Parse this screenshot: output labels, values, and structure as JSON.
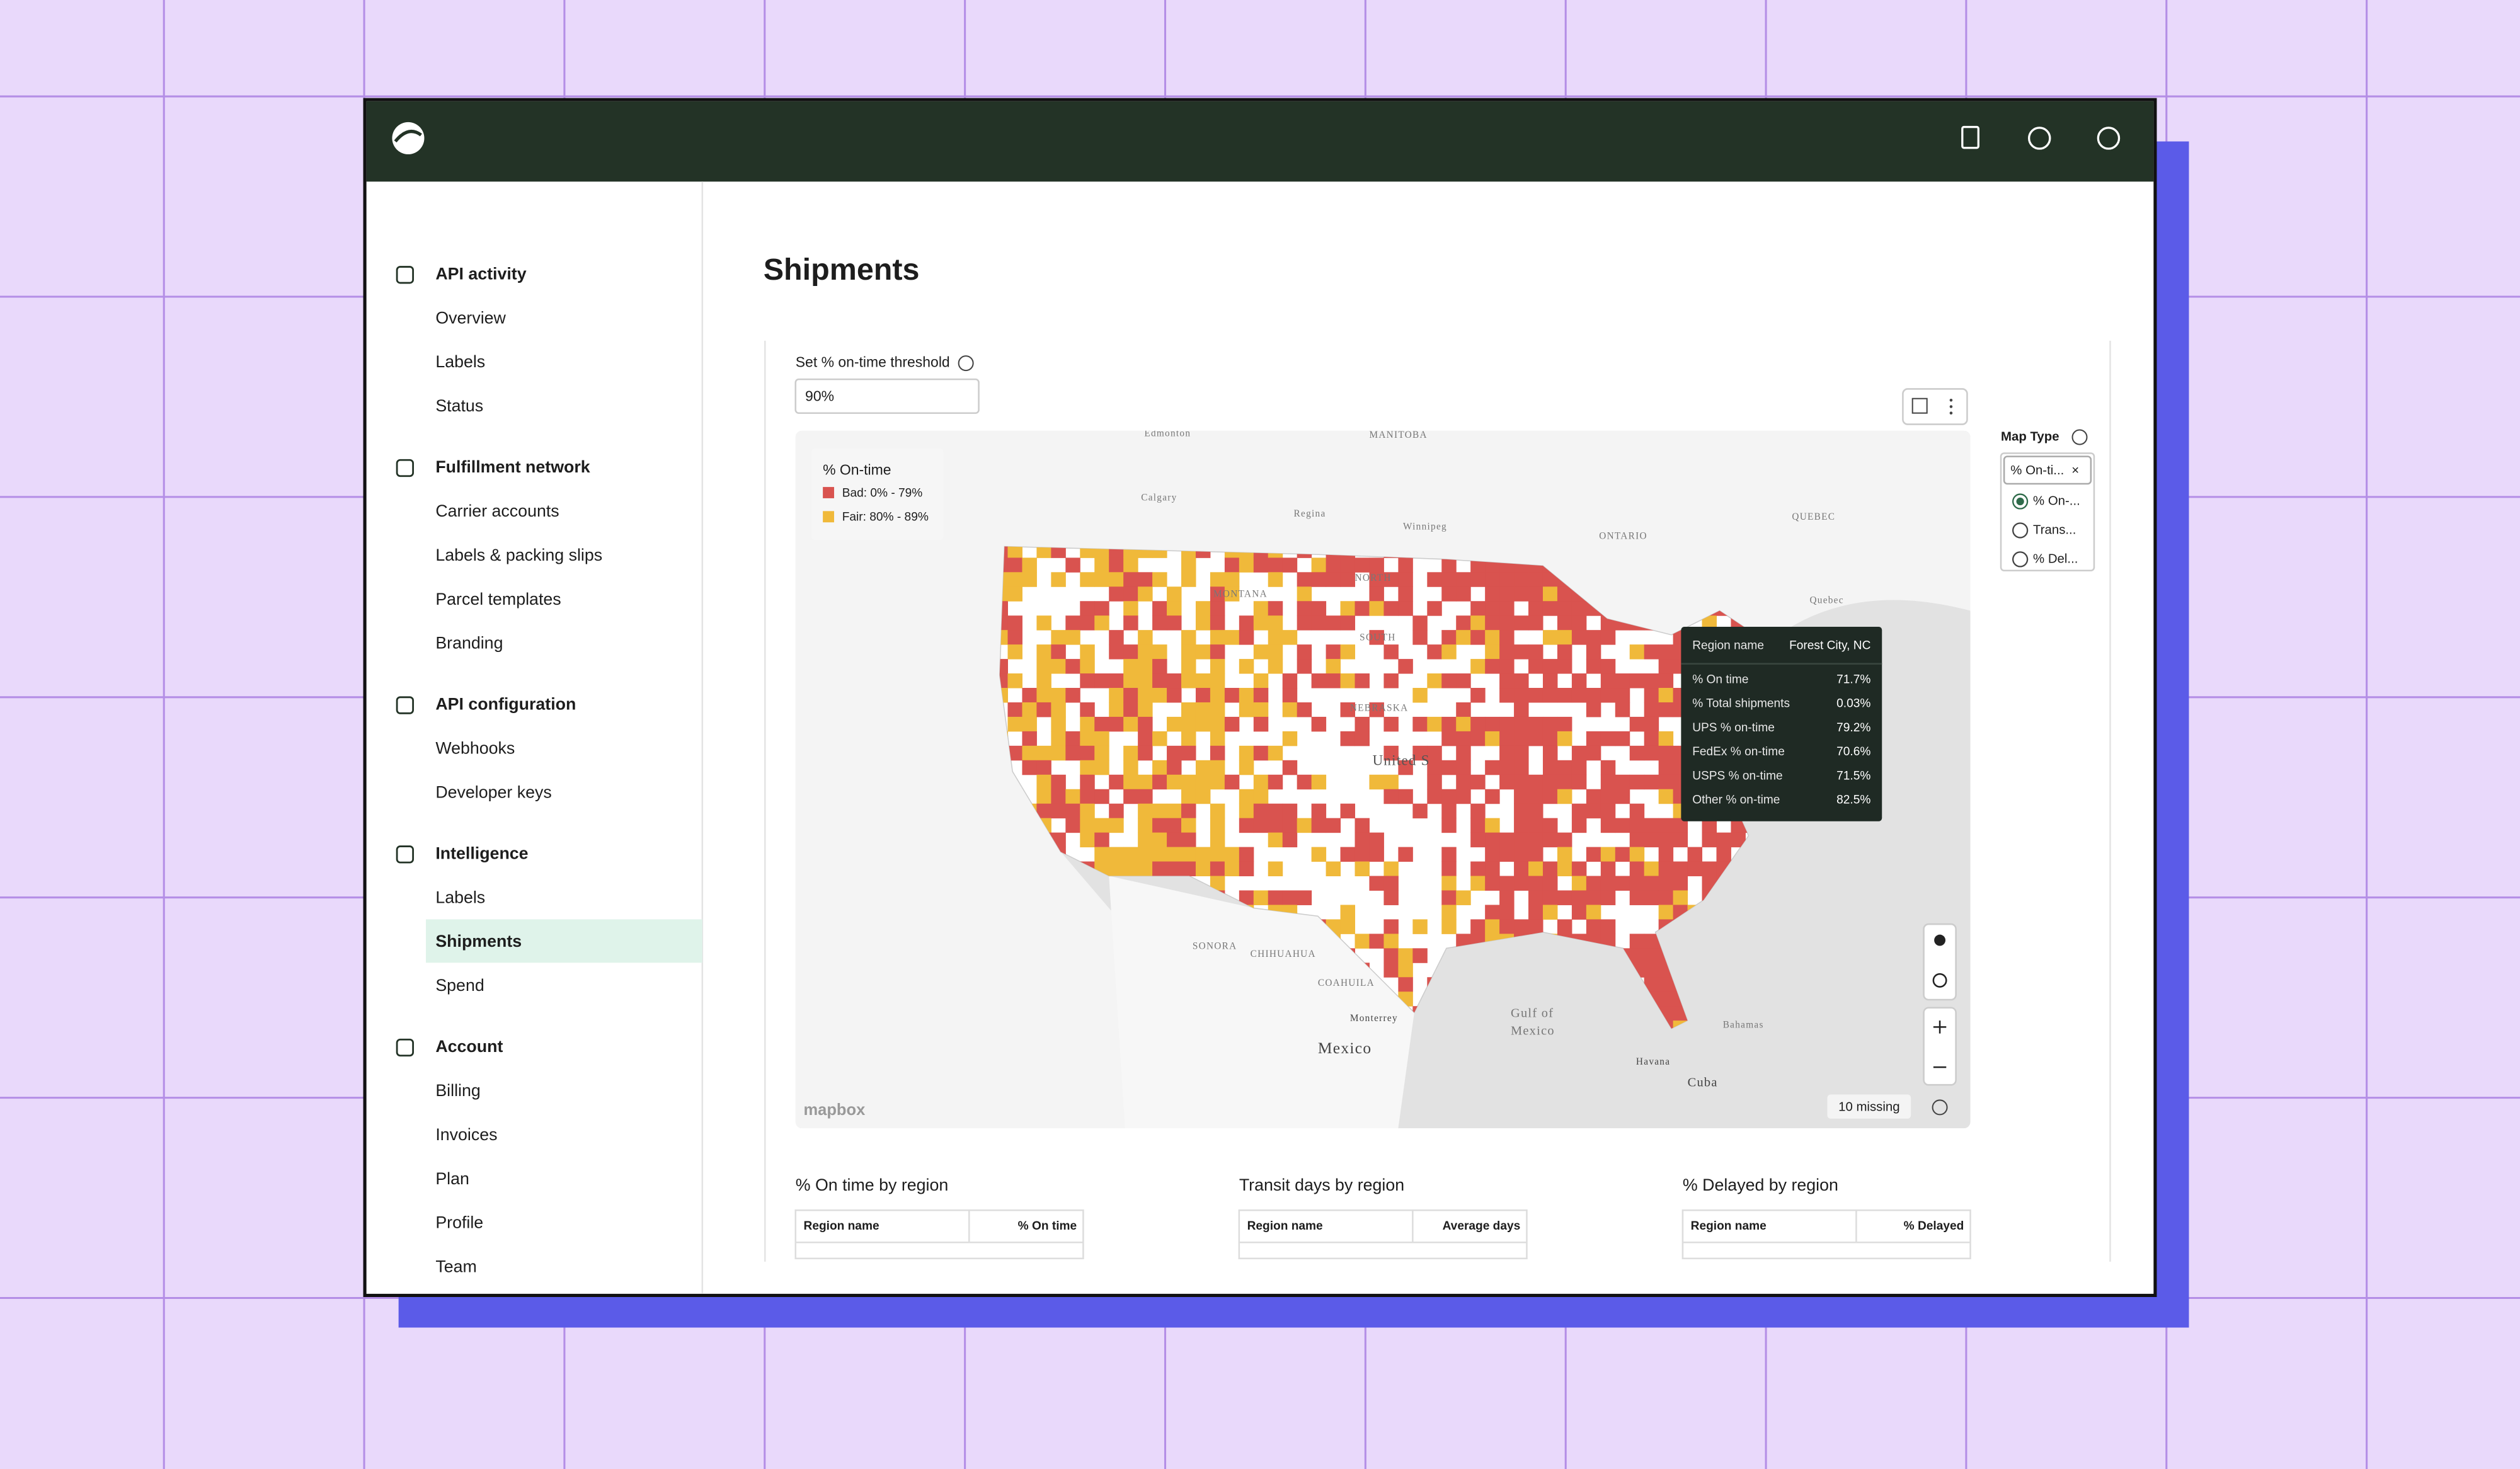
{
  "sidebar": {
    "sections": [
      {
        "title": "API activity",
        "items": [
          "Overview",
          "Labels",
          "Status"
        ]
      },
      {
        "title": "Fulfillment network",
        "items": [
          "Carrier accounts",
          "Labels & packing slips",
          "Parcel templates",
          "Branding"
        ]
      },
      {
        "title": "API configuration",
        "items": [
          "Webhooks",
          "Developer keys"
        ]
      },
      {
        "title": "Intelligence",
        "items": [
          "Labels",
          "Shipments",
          "Spend"
        ]
      },
      {
        "title": "Account",
        "items": [
          "Billing",
          "Invoices",
          "Plan",
          "Profile",
          "Team"
        ]
      }
    ]
  },
  "page": {
    "title": "Shipments",
    "threshold_label": "Set % on-time threshold",
    "threshold_value": "90%"
  },
  "map": {
    "legend": {
      "title": "% On-time",
      "items": [
        "Bad: 0% - 79%",
        "Fair: 80% - 89%"
      ]
    },
    "labels": [
      "Edmonton",
      "MANITOBA",
      "Calgary",
      "Regina",
      "Winnipeg",
      "ONTARIO",
      "QUEBEC",
      "Quebec",
      "MONTANA",
      "NORTH",
      "SOUTH",
      "NEBRASKA",
      "United S",
      "SONORA",
      "CHIHUAHUA",
      "COAHUILA",
      "Monterrey",
      "Mexico",
      "Gulf of",
      "Mexico",
      "Havana",
      "Cuba",
      "Bahamas"
    ],
    "attribution": "mapbox",
    "missing": "10 missing",
    "tooltip": {
      "rows": [
        [
          "Region name",
          "Forest City, NC"
        ],
        [
          "% On time",
          "71.7%"
        ],
        [
          "% Total shipments",
          "0.03%"
        ],
        [
          "UPS % on-time",
          "79.2%"
        ],
        [
          "FedEx % on-time",
          "70.6%"
        ],
        [
          "USPS % on-time",
          "71.5%"
        ],
        [
          "Other % on-time",
          "82.5%"
        ]
      ]
    }
  },
  "map_type": {
    "label": "Map Type",
    "selected": "% On-ti...",
    "options": [
      "% On-...",
      "Trans...",
      "% Del..."
    ]
  },
  "tables": [
    {
      "title": "% On time by region",
      "columns": [
        "Region name",
        "% On time"
      ]
    },
    {
      "title": "Transit days by region",
      "columns": [
        "Region name",
        "Average days"
      ]
    },
    {
      "title": "% Delayed by region",
      "columns": [
        "Region name",
        "% Delayed"
      ]
    }
  ]
}
